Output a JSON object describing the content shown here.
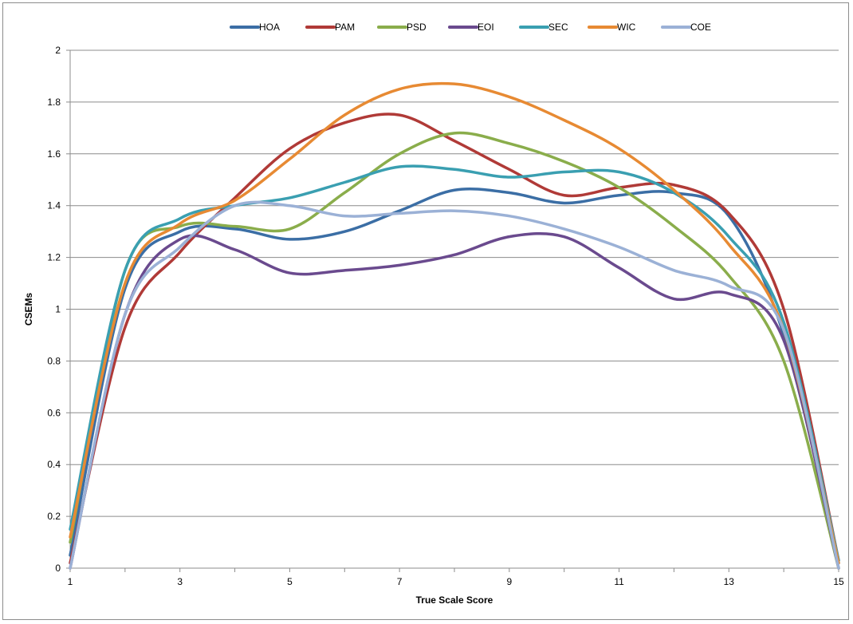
{
  "chart_data": {
    "type": "line",
    "title": "",
    "xlabel": "True Scale Score",
    "ylabel": "CSEMs",
    "xlim": [
      1,
      15
    ],
    "ylim": [
      0,
      2
    ],
    "x_ticks": [
      1,
      3,
      5,
      7,
      9,
      11,
      13,
      15
    ],
    "y_ticks": [
      0,
      0.2,
      0.4,
      0.6,
      0.8,
      1,
      1.2,
      1.4,
      1.6,
      1.8,
      2
    ],
    "grid": "horizontal",
    "legend_position": "top",
    "x": [
      1,
      2,
      3,
      4,
      5,
      6,
      7,
      8,
      9,
      10,
      11,
      12,
      13,
      14,
      15
    ],
    "series": [
      {
        "name": "HOA",
        "color": "#3b6ea5",
        "values": [
          0.05,
          1.08,
          1.3,
          1.31,
          1.27,
          1.3,
          1.38,
          1.46,
          1.45,
          1.41,
          1.44,
          1.45,
          1.36,
          0.9,
          0.02
        ]
      },
      {
        "name": "PAM",
        "color": "#b03a37",
        "values": [
          0.02,
          0.93,
          1.22,
          1.43,
          1.62,
          1.72,
          1.75,
          1.65,
          1.54,
          1.44,
          1.47,
          1.48,
          1.37,
          1.0,
          0.03
        ]
      },
      {
        "name": "PSD",
        "color": "#8aad4b",
        "values": [
          0.1,
          1.15,
          1.32,
          1.32,
          1.31,
          1.45,
          1.6,
          1.68,
          1.64,
          1.57,
          1.47,
          1.32,
          1.13,
          0.8,
          0.0
        ]
      },
      {
        "name": "EOI",
        "color": "#6a4a8e",
        "values": [
          0.0,
          0.98,
          1.27,
          1.23,
          1.14,
          1.15,
          1.17,
          1.21,
          1.28,
          1.28,
          1.16,
          1.04,
          1.06,
          0.88,
          0.0
        ]
      },
      {
        "name": "SEC",
        "color": "#3a9fb1",
        "values": [
          0.15,
          1.15,
          1.35,
          1.4,
          1.43,
          1.49,
          1.55,
          1.54,
          1.51,
          1.53,
          1.53,
          1.45,
          1.28,
          0.95,
          0.03
        ]
      },
      {
        "name": "WIC",
        "color": "#e78a33",
        "values": [
          0.12,
          1.1,
          1.33,
          1.42,
          1.58,
          1.75,
          1.85,
          1.87,
          1.82,
          1.73,
          1.62,
          1.46,
          1.25,
          0.92,
          0.02
        ]
      },
      {
        "name": "COE",
        "color": "#9bb1d6",
        "values": [
          0.0,
          0.98,
          1.24,
          1.4,
          1.4,
          1.36,
          1.37,
          1.38,
          1.36,
          1.31,
          1.24,
          1.15,
          1.09,
          0.92,
          0.0
        ]
      }
    ]
  }
}
